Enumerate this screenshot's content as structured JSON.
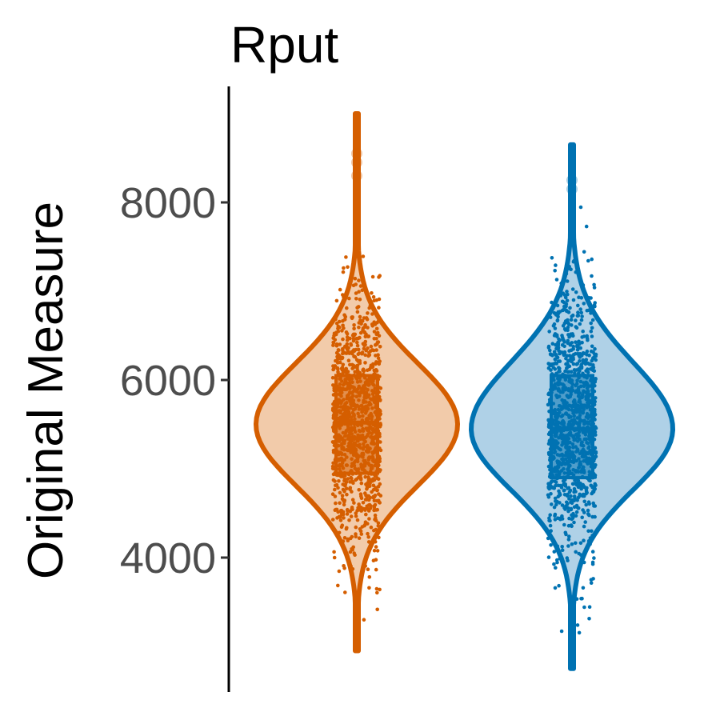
{
  "chart_data": {
    "type": "violin",
    "title": "Rput",
    "xlabel": "",
    "ylabel": "Original Measure",
    "ylim": [
      2500,
      9000
    ],
    "yticks": [
      4000,
      6000,
      8000
    ],
    "grid": false,
    "legend": "none",
    "series": [
      {
        "color": "#D55E00",
        "fill": "#F2CBAA",
        "range": [
          2950,
          9000
        ],
        "median": 5520,
        "q1": 4950,
        "q3": 6050,
        "mode": 5500,
        "outliers": [
          8450,
          8550,
          8300
        ]
      },
      {
        "color": "#0072B2",
        "fill": "#AFD1E7",
        "range": [
          2750,
          8650
        ],
        "median": 5450,
        "q1": 4900,
        "q3": 6050,
        "mode": 5450,
        "outliers": [
          8150,
          8250
        ]
      }
    ]
  }
}
